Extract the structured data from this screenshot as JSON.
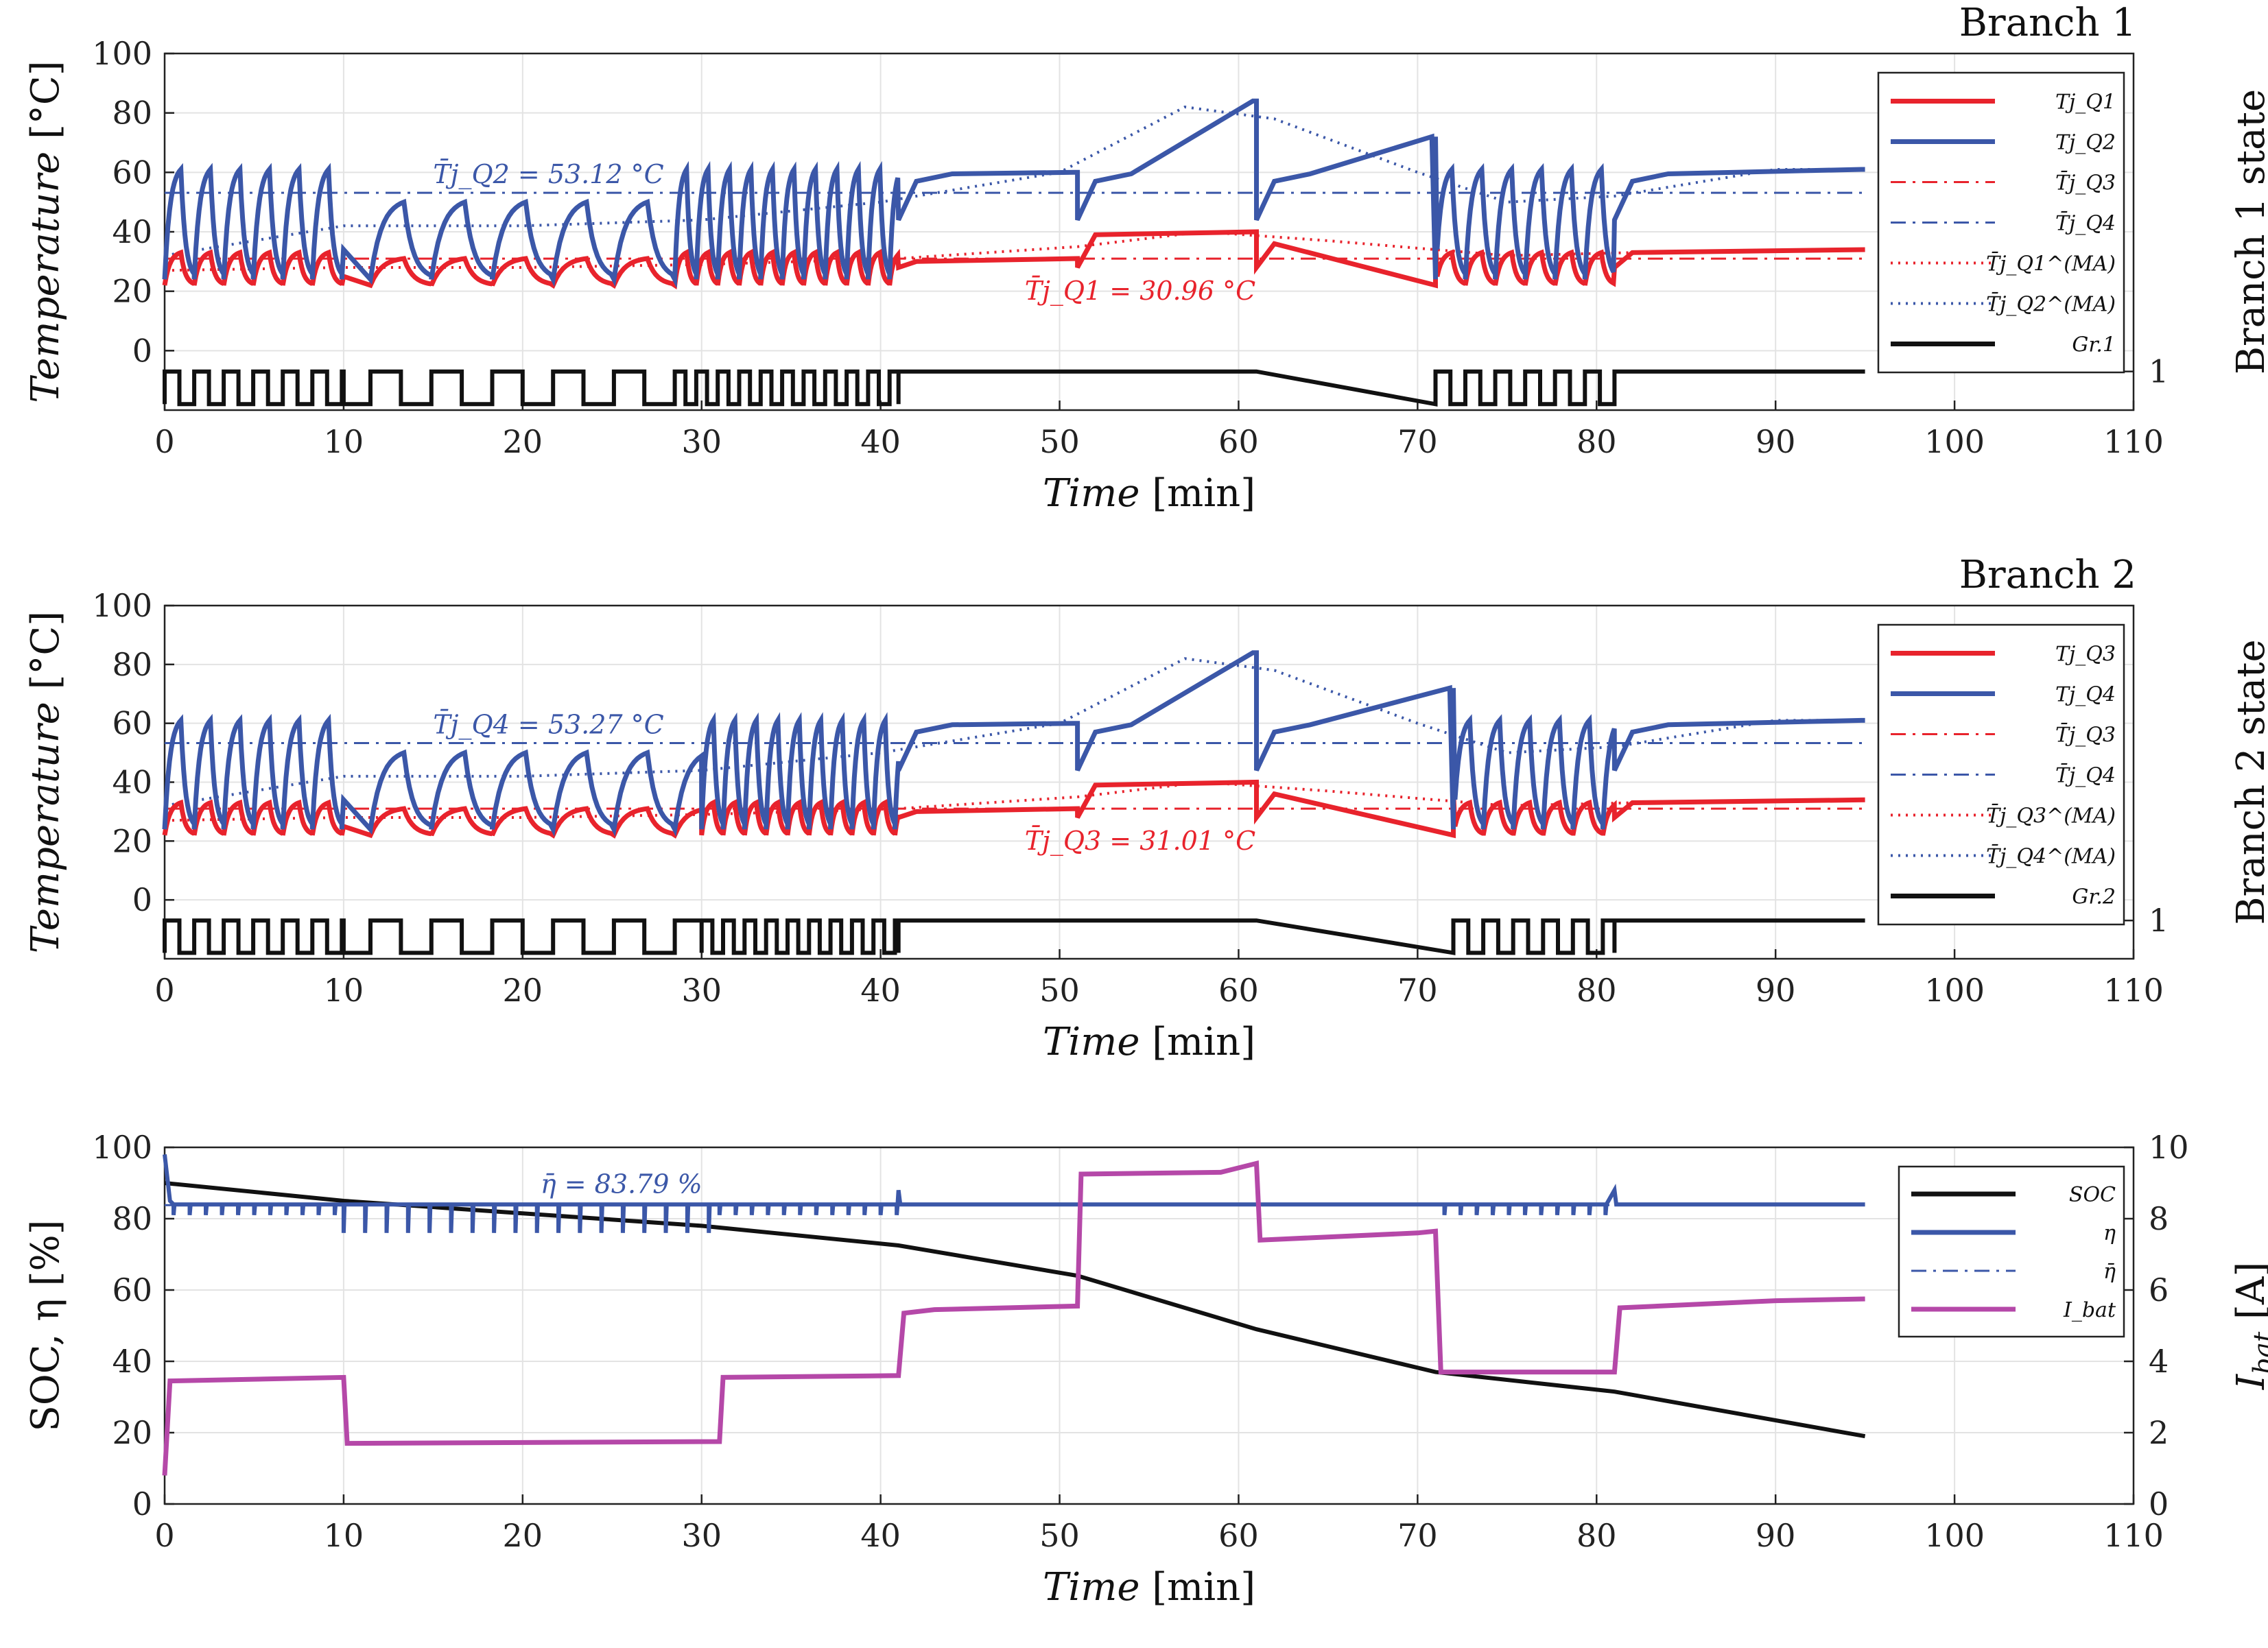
{
  "chart_data": [
    {
      "type": "line",
      "title": "Branch 1",
      "xlabel": "Time [min]",
      "ylabel": "Temperature [°C]",
      "ylabel_right": "Branch 1 state",
      "xlim": [
        0,
        110
      ],
      "ylim": [
        -20,
        100
      ],
      "x_ticks": [
        0,
        10,
        20,
        30,
        40,
        50,
        60,
        70,
        80,
        90,
        100,
        110
      ],
      "y_ticks": [
        0,
        20,
        40,
        60,
        80,
        100
      ],
      "right_ticks": [
        "1"
      ],
      "grid": true,
      "legend_position": "right",
      "legend": [
        "Tj_Q1",
        "Tj_Q2",
        "T̄j_Q3",
        "T̄j_Q4",
        "T̄j_Q1^(MA)",
        "T̄j_Q2^(MA)",
        "Gr.1"
      ],
      "annotations": [
        {
          "text": "T̄j_Q2 = 53.12 °C",
          "value": 53.12,
          "series": "Tj_Q2"
        },
        {
          "text": "T̄j_Q1 = 30.96 °C",
          "value": 30.96,
          "series": "Tj_Q1"
        }
      ],
      "mean_lines": {
        "red": 30.96,
        "blue": 53.12
      },
      "switch_segments": [
        {
          "start": 0,
          "end": 10,
          "period": 1.65
        },
        {
          "start": 11.5,
          "end": 28.5,
          "period": 3.4
        },
        {
          "start": 28.5,
          "end": 41,
          "period": 1.2
        },
        {
          "start": 71,
          "end": 81,
          "period": 1.67
        }
      ],
      "steady_segments": [
        {
          "start": 41,
          "end": 51,
          "blue": 60,
          "red": 31
        },
        {
          "start": 51,
          "end": 61,
          "blue": 84,
          "red": 40
        },
        {
          "start": 61,
          "end": 71,
          "blue": 72,
          "red": 37
        },
        {
          "start": 81,
          "end": 95,
          "blue": 61,
          "red": 34
        }
      ]
    },
    {
      "type": "line",
      "title": "Branch 2",
      "xlabel": "Time [min]",
      "ylabel": "Temperature [°C]",
      "ylabel_right": "Branch 2 state",
      "xlim": [
        0,
        110
      ],
      "ylim": [
        -20,
        100
      ],
      "x_ticks": [
        0,
        10,
        20,
        30,
        40,
        50,
        60,
        70,
        80,
        90,
        100,
        110
      ],
      "y_ticks": [
        0,
        20,
        40,
        60,
        80,
        100
      ],
      "right_ticks": [
        "1"
      ],
      "grid": true,
      "legend_position": "right",
      "legend": [
        "Tj_Q3",
        "Tj_Q4",
        "T̄j_Q3",
        "T̄j_Q4",
        "T̄j_Q3^(MA)",
        "T̄j_Q4^(MA)",
        "Gr.2"
      ],
      "annotations": [
        {
          "text": "T̄j_Q4 = 53.27 °C",
          "value": 53.27,
          "series": "Tj_Q4"
        },
        {
          "text": "T̄j_Q3 = 31.01 °C",
          "value": 31.01,
          "series": "Tj_Q3"
        }
      ],
      "mean_lines": {
        "red": 31.01,
        "blue": 53.27
      },
      "switch_segments": [
        {
          "start": 0,
          "end": 10,
          "period": 1.65
        },
        {
          "start": 11.5,
          "end": 30,
          "period": 3.4
        },
        {
          "start": 30,
          "end": 41,
          "period": 1.2
        },
        {
          "start": 72,
          "end": 81,
          "period": 1.67
        }
      ],
      "steady_segments": [
        {
          "start": 41,
          "end": 51,
          "blue": 60,
          "red": 31
        },
        {
          "start": 51,
          "end": 61,
          "blue": 84,
          "red": 40
        },
        {
          "start": 61,
          "end": 72,
          "blue": 72,
          "red": 37
        },
        {
          "start": 81,
          "end": 95,
          "blue": 61,
          "red": 34
        }
      ]
    },
    {
      "type": "line",
      "title": "",
      "xlabel": "Time [min]",
      "ylabel": "SOC, η [%]",
      "ylabel_right": "I_bat [A]",
      "xlim": [
        0,
        110
      ],
      "ylim": [
        0,
        100
      ],
      "ylim_right": [
        0,
        10
      ],
      "x_ticks": [
        0,
        10,
        20,
        30,
        40,
        50,
        60,
        70,
        80,
        90,
        100,
        110
      ],
      "y_ticks": [
        0,
        20,
        40,
        60,
        80,
        100
      ],
      "right_ticks": [
        0,
        2,
        4,
        6,
        8,
        10
      ],
      "grid": true,
      "legend_position": "top-right",
      "legend": [
        "SOC",
        "η",
        "η̄",
        "I_bat"
      ],
      "annotations": [
        {
          "text": "η̄ = 83.79 %",
          "value": 83.79
        }
      ],
      "series": [
        {
          "name": "SOC",
          "x": [
            0,
            10,
            20,
            30,
            41,
            51,
            61,
            71,
            81,
            95
          ],
          "y": [
            90,
            85,
            81.5,
            78,
            72.5,
            64,
            49,
            37,
            31.5,
            19
          ]
        },
        {
          "name": "η",
          "x": [
            0,
            95
          ],
          "y": [
            84,
            84
          ]
        },
        {
          "name": "η̄",
          "x": [
            0,
            95
          ],
          "y": [
            83.79,
            83.79
          ]
        },
        {
          "name": "I_bat",
          "x": [
            0,
            0.3,
            10,
            10.2,
            31,
            31.2,
            41,
            41.3,
            43,
            51,
            51.2,
            59,
            61,
            61.2,
            70,
            71,
            71.3,
            81,
            81.3,
            90,
            95
          ],
          "y": [
            0.8,
            3.45,
            3.55,
            1.7,
            1.75,
            3.55,
            3.6,
            5.35,
            5.45,
            5.55,
            9.25,
            9.3,
            9.55,
            7.4,
            7.6,
            7.65,
            3.7,
            3.7,
            5.5,
            5.7,
            5.75
          ]
        }
      ],
      "eta_dips": [
        {
          "start": 0.5,
          "end": 10,
          "period": 0.9,
          "depth": 3
        },
        {
          "start": 10,
          "end": 31,
          "period": 1.2,
          "depth": 8
        },
        {
          "start": 31,
          "end": 41,
          "period": 0.9,
          "depth": 3
        },
        {
          "start": 71.5,
          "end": 81,
          "period": 0.9,
          "depth": 3
        }
      ]
    }
  ],
  "labels": {
    "time_var": "Time",
    "time_unit": "[min]",
    "temp_var": "Temperature",
    "temp_unit": "[°C]",
    "branch1": "Branch 1",
    "branch2": "Branch 2",
    "state1": "Branch 1 state",
    "state2": "Branch 2 state",
    "soc_ylabel": "SOC, η [%]",
    "ibat_var": "I",
    "ibat_sub": "bat",
    "ibat_unit": "[A]"
  },
  "colors": {
    "red": "#e8232c",
    "blue": "#3b57a8",
    "black": "#111111",
    "magenta": "#b548a8"
  }
}
